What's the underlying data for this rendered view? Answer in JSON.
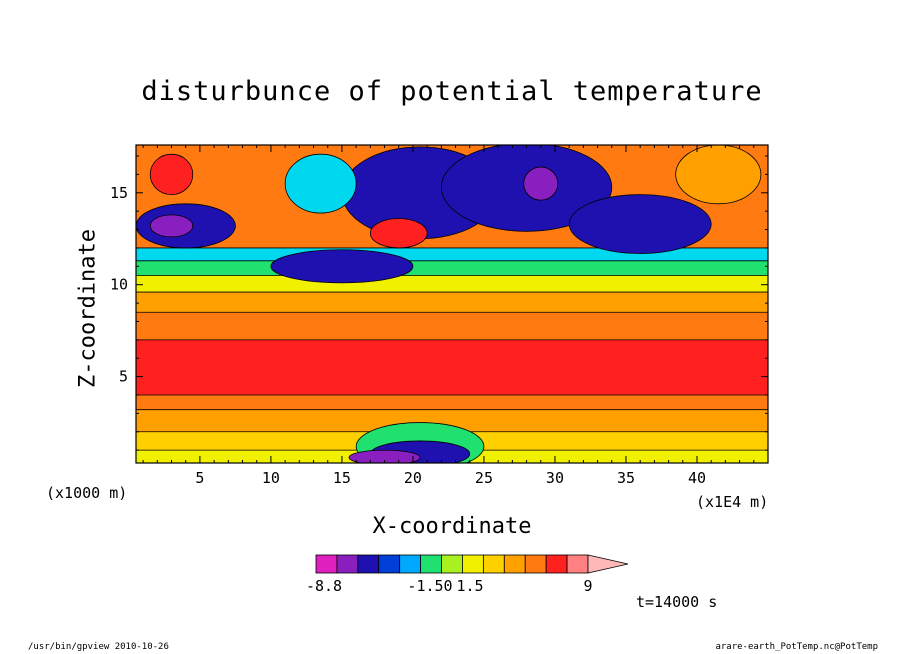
{
  "chart_data": {
    "type": "contour",
    "title": "disturbunce of potential temperature",
    "xlabel": "X-coordinate",
    "ylabel": "Z-coordinate",
    "x_unit": "(x1E4 m)",
    "y_unit": "(x1000 m)",
    "xlim": [
      0.5,
      45
    ],
    "ylim": [
      0.3,
      17.6
    ],
    "x_ticks": [
      "5",
      "10",
      "15",
      "20",
      "25",
      "30",
      "35",
      "40"
    ],
    "y_ticks": [
      "5",
      "10",
      "15"
    ],
    "colorbar": {
      "labels": [
        "-8.8",
        "-1.50",
        "1.5",
        "9"
      ],
      "colors": [
        "#e01fbf",
        "#8a1fc0",
        "#1f10b0",
        "#0040d8",
        "#00a8ff",
        "#20e070",
        "#a8f020",
        "#f0f000",
        "#ffd000",
        "#ffa000",
        "#ff7a10",
        "#ff2020",
        "#ff8080",
        "#ffb8b8"
      ]
    },
    "bands": [
      {
        "z": [
          0.3,
          1.0
        ],
        "color": "#f0f000"
      },
      {
        "z": [
          1.0,
          2.0
        ],
        "color": "#ffd000"
      },
      {
        "z": [
          2.0,
          3.2
        ],
        "color": "#ffa000"
      },
      {
        "z": [
          3.2,
          4.0
        ],
        "color": "#ff7a10"
      },
      {
        "z": [
          4.0,
          7.0
        ],
        "color": "#ff2020"
      },
      {
        "z": [
          7.0,
          8.5
        ],
        "color": "#ff7a10"
      },
      {
        "z": [
          8.5,
          9.6
        ],
        "color": "#ffa000"
      },
      {
        "z": [
          9.6,
          10.5
        ],
        "color": "#f0f000"
      },
      {
        "z": [
          10.5,
          11.3
        ],
        "color": "#20e070"
      },
      {
        "z": [
          11.3,
          12.0
        ],
        "color": "#00d8f0"
      },
      {
        "z": [
          12.0,
          17.6
        ],
        "color": "#ff7a10"
      }
    ],
    "blobs": [
      {
        "cx": 4.0,
        "cz": 13.2,
        "rx": 3.5,
        "rz": 1.2,
        "color": "#1f10b0"
      },
      {
        "cx": 3.0,
        "cz": 13.2,
        "rx": 1.5,
        "rz": 0.6,
        "color": "#8a1fc0"
      },
      {
        "cx": 15.0,
        "cz": 11.0,
        "rx": 5.0,
        "rz": 0.9,
        "color": "#1f10b0"
      },
      {
        "cx": 20.5,
        "cz": 15.0,
        "rx": 5.5,
        "rz": 2.5,
        "color": "#1f10b0"
      },
      {
        "cx": 28.0,
        "cz": 15.3,
        "rx": 6.0,
        "rz": 2.4,
        "color": "#1f10b0"
      },
      {
        "cx": 29.0,
        "cz": 15.5,
        "rx": 1.2,
        "rz": 0.9,
        "color": "#8a1fc0"
      },
      {
        "cx": 36.0,
        "cz": 13.3,
        "rx": 5.0,
        "rz": 1.6,
        "color": "#1f10b0"
      },
      {
        "cx": 13.5,
        "cz": 15.5,
        "rx": 2.5,
        "rz": 1.6,
        "color": "#00d8f0"
      },
      {
        "cx": 41.5,
        "cz": 16.0,
        "rx": 3.0,
        "rz": 1.6,
        "color": "#ffa000"
      },
      {
        "cx": 3.0,
        "cz": 16.0,
        "rx": 1.5,
        "rz": 1.1,
        "color": "#ff2020"
      },
      {
        "cx": 19.0,
        "cz": 12.8,
        "rx": 2.0,
        "rz": 0.8,
        "color": "#ff2020"
      },
      {
        "cx": 20.5,
        "cz": 1.2,
        "rx": 4.5,
        "rz": 1.3,
        "color": "#20e070"
      },
      {
        "cx": 20.5,
        "cz": 0.8,
        "rx": 3.5,
        "rz": 0.7,
        "color": "#1f10b0"
      },
      {
        "cx": 18.0,
        "cz": 0.6,
        "rx": 2.5,
        "rz": 0.4,
        "color": "#8a1fc0"
      }
    ]
  },
  "timestamp": "t=14000 s",
  "footer_left": "/usr/bin/gpview  2010-10-26",
  "footer_right": "arare-earth_PotTemp.nc@PotTemp"
}
